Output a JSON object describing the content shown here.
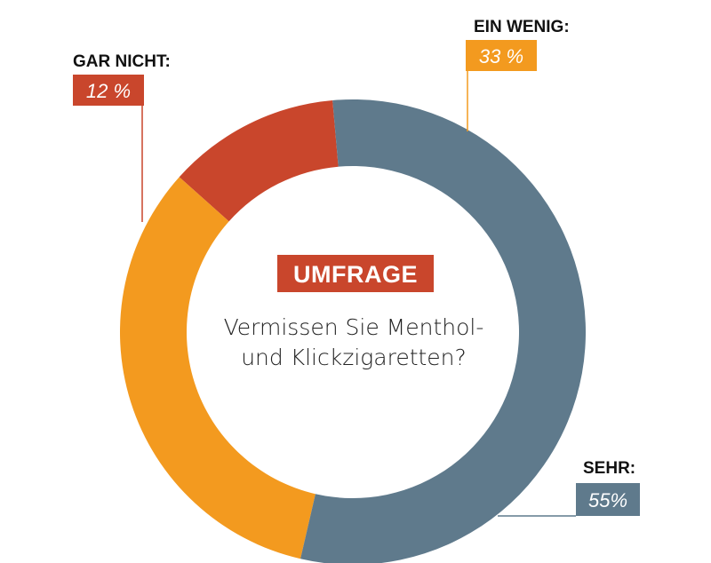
{
  "chart_data": {
    "type": "pie",
    "title": "",
    "center_badge": "UMFRAGE",
    "center_question": [
      "Vermissen Sie Menthol-",
      "und Klickzigaretten?"
    ],
    "slices": [
      {
        "category": "GAR NICHT:",
        "value": 12,
        "value_label": "12 %",
        "color": "#c9462c"
      },
      {
        "category": "EIN WENIG:",
        "value": 33,
        "value_label": "33 %",
        "color": "#f39a1f"
      },
      {
        "category": "SEHR:",
        "value": 55,
        "value_label": "55%",
        "color": "#5f7a8c"
      }
    ],
    "legend": "none",
    "colors": {
      "badge": "#c9462c"
    }
  }
}
